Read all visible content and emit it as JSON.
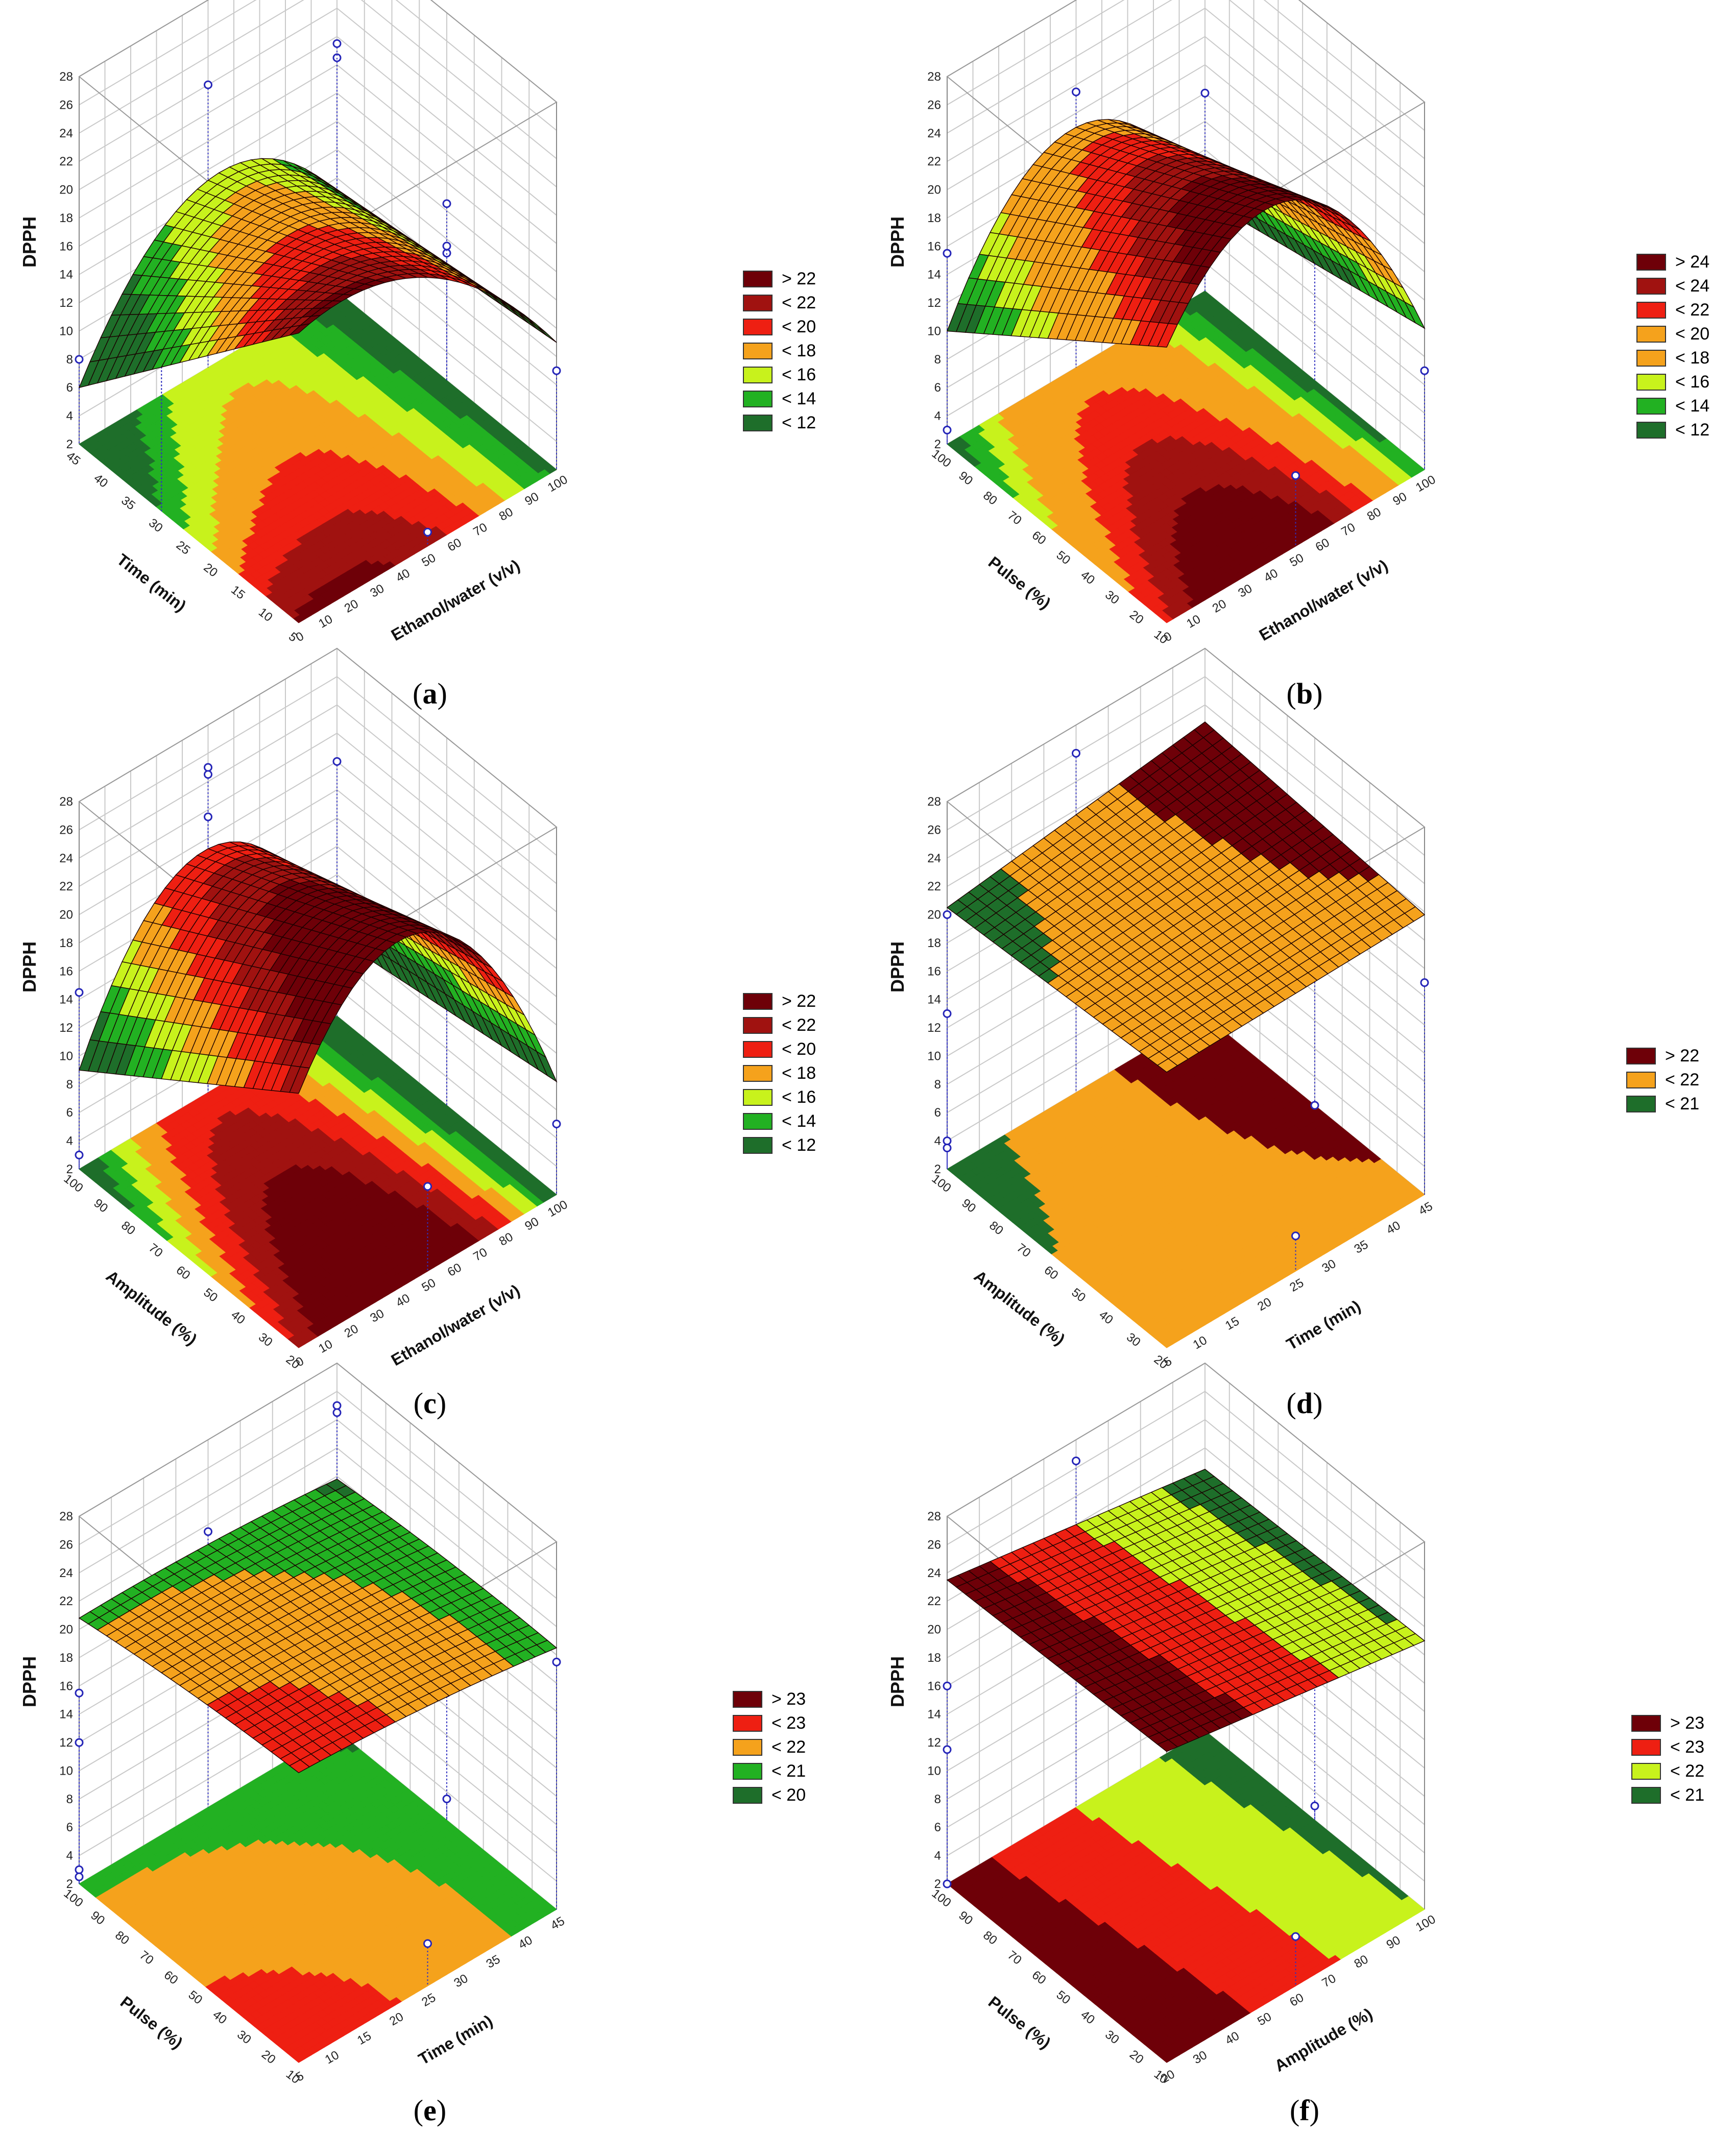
{
  "colors": {
    "ramp": [
      "#1e6e2a",
      "#22b122",
      "#c8f21c",
      "#f5a21c",
      "#ee1f12",
      "#a01210",
      "#6e0008"
    ]
  },
  "chart_data": [
    {
      "id": "a",
      "type": "surface3d",
      "caption": {
        "open": "(",
        "letter": "a",
        "close": ")"
      },
      "zlabel": "DPPH",
      "xlabel": "Ethanol/water (v/v)",
      "ylabel": "Time (min)",
      "zlim": [
        2,
        28
      ],
      "zticks": [
        "2",
        "4",
        "6",
        "8",
        "10",
        "12",
        "14",
        "16",
        "18",
        "20",
        "22",
        "24",
        "26",
        "28"
      ],
      "xticks": [
        "0",
        "10",
        "20",
        "30",
        "40",
        "50",
        "60",
        "70",
        "80",
        "90",
        "100"
      ],
      "yticks": [
        "5",
        "10",
        "15",
        "20",
        "25",
        "30",
        "35",
        "40",
        "45"
      ],
      "legend": [
        "> 22",
        "< 22",
        "< 20",
        "< 18",
        "< 16",
        "< 14",
        "< 12"
      ],
      "levels": [
        22,
        20,
        18,
        16,
        14,
        12
      ],
      "shape": "paraboloid",
      "corners": [
        22.5,
        11,
        9,
        6
      ],
      "mid_x": 24.5,
      "points": [
        {
          "x": 0,
          "y": 45,
          "z": 8
        },
        {
          "x": 0,
          "y": 30,
          "z": 16.5
        },
        {
          "x": 0,
          "y": 30,
          "z": 14.5
        },
        {
          "x": 50,
          "y": 45,
          "z": 22
        },
        {
          "x": 50,
          "y": 5,
          "z": 3
        },
        {
          "x": 100,
          "y": 45,
          "z": 18.5
        },
        {
          "x": 100,
          "y": 45,
          "z": 19.5
        },
        {
          "x": 100,
          "y": 25,
          "z": 14.5
        },
        {
          "x": 100,
          "y": 25,
          "z": 11
        },
        {
          "x": 100,
          "y": 25,
          "z": 11.5
        },
        {
          "x": 100,
          "y": 5,
          "z": 9
        }
      ]
    },
    {
      "id": "b",
      "type": "surface3d",
      "caption": {
        "open": "(",
        "letter": "b",
        "close": ")"
      },
      "zlabel": "DPPH",
      "xlabel": "Ethanol/water (v/v)",
      "ylabel": "Pulse (%)",
      "zlim": [
        2,
        28
      ],
      "zticks": [
        "2",
        "4",
        "6",
        "8",
        "10",
        "12",
        "14",
        "16",
        "18",
        "20",
        "22",
        "24",
        "26",
        "28"
      ],
      "xticks": [
        "0",
        "10",
        "20",
        "30",
        "40",
        "50",
        "60",
        "70",
        "80",
        "90",
        "100"
      ],
      "yticks": [
        "10",
        "20",
        "30",
        "40",
        "50",
        "60",
        "70",
        "80",
        "90",
        "100"
      ],
      "legend": [
        "> 24",
        "< 24",
        "< 22",
        "< 20",
        "< 18",
        "< 16",
        "< 14",
        "< 12"
      ],
      "levels": [
        24,
        22,
        20,
        18,
        16,
        14,
        12
      ],
      "shape": "ridge",
      "corners": [
        21.5,
        12,
        8.5,
        10
      ],
      "mid_x": 26.5,
      "points": [
        {
          "x": 0,
          "y": 100,
          "z": 15.5
        },
        {
          "x": 0,
          "y": 100,
          "z": 3
        },
        {
          "x": 50,
          "y": 100,
          "z": 21.5
        },
        {
          "x": 50,
          "y": 10,
          "z": 7
        },
        {
          "x": 100,
          "y": 100,
          "z": 16
        },
        {
          "x": 100,
          "y": 55,
          "z": 12
        },
        {
          "x": 100,
          "y": 55,
          "z": 11.5
        },
        {
          "x": 100,
          "y": 55,
          "z": 11
        },
        {
          "x": 100,
          "y": 10,
          "z": 9
        }
      ]
    },
    {
      "id": "c",
      "type": "surface3d",
      "caption": {
        "open": "(",
        "letter": "c",
        "close": ")"
      },
      "zlabel": "DPPH",
      "xlabel": "Ethanol/water (v/v)",
      "ylabel": "Amplitude (%)",
      "zlim": [
        2,
        28
      ],
      "zticks": [
        "2",
        "4",
        "6",
        "8",
        "10",
        "12",
        "14",
        "16",
        "18",
        "20",
        "22",
        "24",
        "26",
        "28"
      ],
      "xticks": [
        "0",
        "10",
        "20",
        "30",
        "40",
        "50",
        "60",
        "70",
        "80",
        "90",
        "100"
      ],
      "yticks": [
        "20",
        "30",
        "40",
        "50",
        "60",
        "70",
        "80",
        "90",
        "100"
      ],
      "legend": [
        "> 22",
        "< 22",
        "< 20",
        "< 18",
        "< 16",
        "< 14",
        "< 12"
      ],
      "levels": [
        22,
        20,
        18,
        16,
        14,
        12
      ],
      "shape": "ridge",
      "corners": [
        20,
        10,
        7.5,
        9
      ],
      "mid_x": 26,
      "points": [
        {
          "x": 0,
          "y": 100,
          "z": 14.5
        },
        {
          "x": 0,
          "y": 100,
          "z": 3
        },
        {
          "x": 50,
          "y": 100,
          "z": 25
        },
        {
          "x": 50,
          "y": 100,
          "z": 24.5
        },
        {
          "x": 50,
          "y": 100,
          "z": 21.5
        },
        {
          "x": 50,
          "y": 20,
          "z": 8
        },
        {
          "x": 100,
          "y": 100,
          "z": 20
        },
        {
          "x": 100,
          "y": 60,
          "z": 13
        },
        {
          "x": 100,
          "y": 60,
          "z": 12
        },
        {
          "x": 100,
          "y": 60,
          "z": 11.5
        },
        {
          "x": 100,
          "y": 20,
          "z": 7
        }
      ]
    },
    {
      "id": "d",
      "type": "surface3d",
      "caption": {
        "open": "(",
        "letter": "d",
        "close": ")"
      },
      "zlabel": "DPPH",
      "xlabel": "Time (min)",
      "ylabel": "Amplitude (%)",
      "zlim": [
        2,
        28
      ],
      "zticks": [
        "2",
        "4",
        "6",
        "8",
        "10",
        "12",
        "14",
        "16",
        "18",
        "20",
        "22",
        "24",
        "26",
        "28"
      ],
      "xticks": [
        "5",
        "10",
        "15",
        "20",
        "25",
        "30",
        "35",
        "40",
        "45"
      ],
      "yticks": [
        "20",
        "30",
        "40",
        "50",
        "60",
        "70",
        "80",
        "90",
        "100"
      ],
      "legend": [
        "> 22",
        "< 22",
        "< 21"
      ],
      "levels": [
        22,
        21
      ],
      "shape": "plane",
      "corners": [
        21.5,
        21.8,
        22.8,
        20.5
      ],
      "points": [
        {
          "x": 5,
          "y": 100,
          "z": 20
        },
        {
          "x": 5,
          "y": 100,
          "z": 13
        },
        {
          "x": 5,
          "y": 100,
          "z": 4
        },
        {
          "x": 5,
          "y": 100,
          "z": 3.5
        },
        {
          "x": 25,
          "y": 100,
          "z": 26
        },
        {
          "x": 25,
          "y": 20,
          "z": 4.5
        },
        {
          "x": 45,
          "y": 100,
          "z": 13.5
        },
        {
          "x": 45,
          "y": 60,
          "z": 12.5
        },
        {
          "x": 45,
          "y": 60,
          "z": 1.5
        },
        {
          "x": 45,
          "y": 20,
          "z": 17
        }
      ]
    },
    {
      "id": "e",
      "type": "surface3d",
      "caption": {
        "open": "(",
        "letter": "e",
        "close": ")"
      },
      "zlabel": "DPPH",
      "xlabel": "Time (min)",
      "ylabel": "Pulse (%)",
      "zlim": [
        2,
        28
      ],
      "zticks": [
        "2",
        "4",
        "6",
        "8",
        "10",
        "12",
        "14",
        "16",
        "18",
        "20",
        "22",
        "24",
        "26",
        "28"
      ],
      "xticks": [
        "5",
        "10",
        "15",
        "20",
        "25",
        "30",
        "35",
        "40",
        "45"
      ],
      "yticks": [
        "10",
        "20",
        "30",
        "40",
        "50",
        "60",
        "70",
        "80",
        "90",
        "100"
      ],
      "legend": [
        "> 23",
        "< 23",
        "< 22",
        "< 21",
        "< 20"
      ],
      "levels": [
        23,
        22,
        21,
        20
      ],
      "shape": "saddle",
      "corners": [
        22.5,
        20.5,
        19.8,
        20.8
      ],
      "points": [
        {
          "x": 5,
          "y": 100,
          "z": 15.5
        },
        {
          "x": 5,
          "y": 100,
          "z": 12
        },
        {
          "x": 5,
          "y": 100,
          "z": 3
        },
        {
          "x": 5,
          "y": 100,
          "z": 2.5
        },
        {
          "x": 25,
          "y": 100,
          "z": 21.5
        },
        {
          "x": 25,
          "y": 10,
          "z": 5
        },
        {
          "x": 45,
          "y": 100,
          "z": 25
        },
        {
          "x": 45,
          "y": 100,
          "z": 24.5
        },
        {
          "x": 45,
          "y": 55,
          "z": 12.5
        },
        {
          "x": 45,
          "y": 55,
          "z": 11
        },
        {
          "x": 45,
          "y": 55,
          "z": 3.5
        },
        {
          "x": 45,
          "y": 10,
          "z": 19.5
        }
      ]
    },
    {
      "id": "f",
      "type": "surface3d",
      "caption": {
        "open": "(",
        "letter": "f",
        "close": ")"
      },
      "zlabel": "DPPH",
      "xlabel": "Amplitude (%)",
      "ylabel": "Pulse (%)",
      "zlim": [
        2,
        28
      ],
      "zticks": [
        "2",
        "4",
        "6",
        "8",
        "10",
        "12",
        "14",
        "16",
        "18",
        "20",
        "22",
        "24",
        "26",
        "28"
      ],
      "xticks": [
        "20",
        "30",
        "40",
        "50",
        "60",
        "70",
        "80",
        "90",
        "100"
      ],
      "yticks": [
        "10",
        "20",
        "30",
        "40",
        "50",
        "60",
        "70",
        "80",
        "90",
        "100"
      ],
      "legend": [
        "> 23",
        "< 23",
        "< 22",
        "< 21"
      ],
      "levels": [
        23,
        22,
        21
      ],
      "shape": "plane",
      "corners": [
        24,
        21,
        20.5,
        23.5
      ],
      "points": [
        {
          "x": 20,
          "y": 100,
          "z": 16
        },
        {
          "x": 20,
          "y": 100,
          "z": 11.5
        },
        {
          "x": 20,
          "y": 100,
          "z": 2
        },
        {
          "x": 60,
          "y": 100,
          "z": 26.5
        },
        {
          "x": 60,
          "y": 10,
          "z": 5.5
        },
        {
          "x": 100,
          "y": 100,
          "z": 16
        },
        {
          "x": 100,
          "y": 55,
          "z": 12
        },
        {
          "x": 100,
          "y": 55,
          "z": 3
        }
      ]
    }
  ]
}
